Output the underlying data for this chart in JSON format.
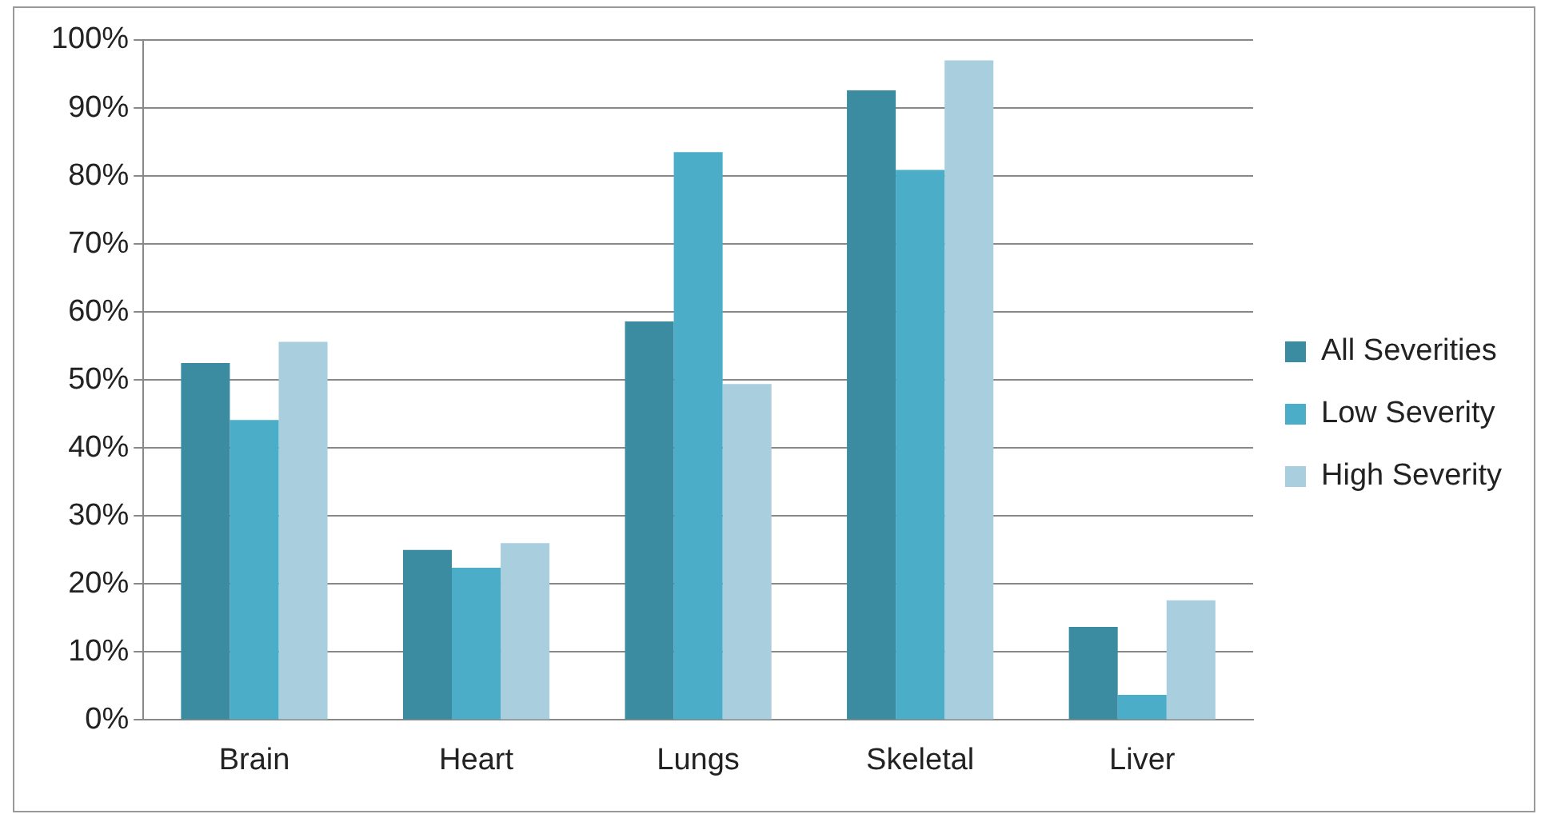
{
  "chart_data": {
    "type": "bar",
    "categories": [
      "Brain",
      "Heart",
      "Lungs",
      "Skeletal",
      "Liver"
    ],
    "series": [
      {
        "name": "All Severities",
        "color": "#3b8ba1",
        "values": [
          52.5,
          25,
          58.6,
          92.6,
          13.7
        ]
      },
      {
        "name": "Low Severity",
        "color": "#4badc8",
        "values": [
          44.1,
          22.4,
          83.5,
          80.9,
          3.7
        ]
      },
      {
        "name": "High Severity",
        "color": "#a9cedd",
        "values": [
          55.6,
          26,
          49.4,
          97,
          17.6
        ]
      }
    ],
    "ylim": [
      0,
      100
    ],
    "yticks": [
      {
        "value": 0,
        "label": "0%"
      },
      {
        "value": 10,
        "label": "10%"
      },
      {
        "value": 20,
        "label": "20%"
      },
      {
        "value": 30,
        "label": "30%"
      },
      {
        "value": 40,
        "label": "40%"
      },
      {
        "value": 50,
        "label": "50%"
      },
      {
        "value": 60,
        "label": "60%"
      },
      {
        "value": 70,
        "label": "70%"
      },
      {
        "value": 80,
        "label": "80%"
      },
      {
        "value": 90,
        "label": "90%"
      },
      {
        "value": 100,
        "label": "100%"
      }
    ],
    "grid": "y",
    "legend": "right"
  }
}
